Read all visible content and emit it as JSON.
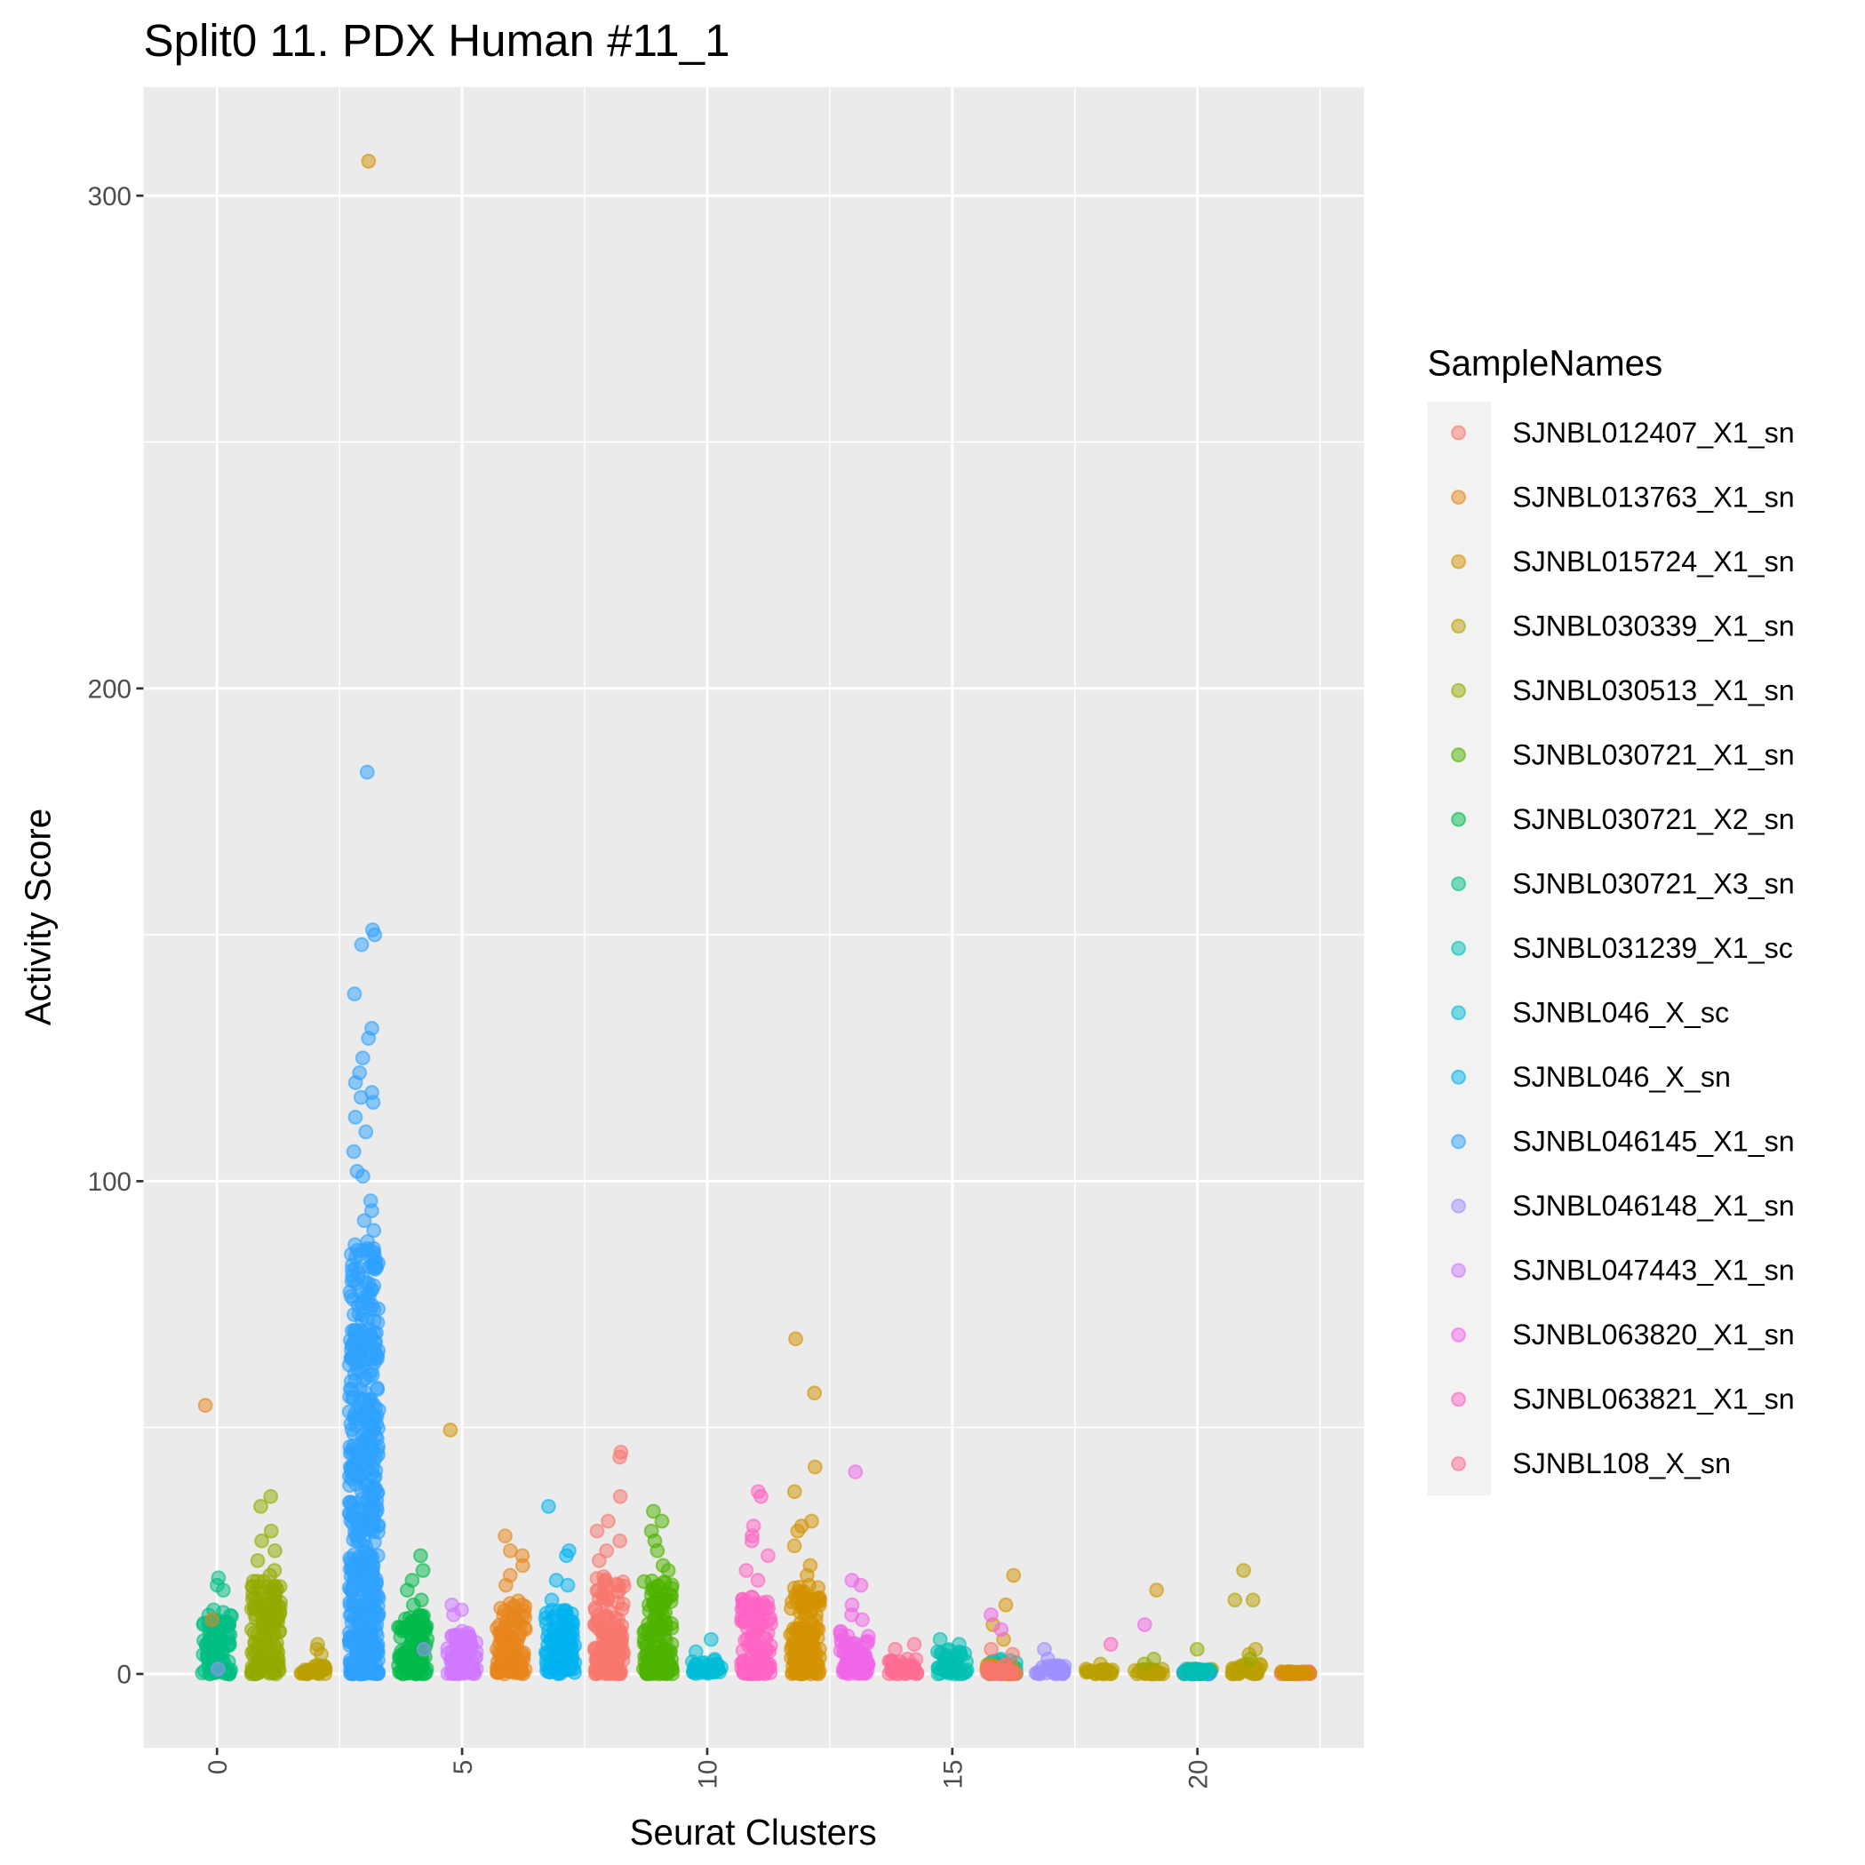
{
  "chart_data": {
    "type": "scatter",
    "subtype": "jittered strip plot",
    "title": "Split0 11. PDX Human #11_1",
    "xlabel": "Seurat Clusters",
    "ylabel": "Activity Score",
    "xlim": [
      -1.5,
      23.4
    ],
    "ylim": [
      -15,
      322
    ],
    "x_ticks": [
      0,
      5,
      10,
      15,
      20
    ],
    "y_ticks": [
      0,
      100,
      200,
      300
    ],
    "grid": true,
    "legend": {
      "title": "SampleNames",
      "position": "right",
      "entries": [
        {
          "name": "SJNBL012407_X1_sn",
          "color": "#F8766D"
        },
        {
          "name": "SJNBL013763_X1_sn",
          "color": "#E7861B"
        },
        {
          "name": "SJNBL015724_X1_sn",
          "color": "#D39200"
        },
        {
          "name": "SJNBL030339_X1_sn",
          "color": "#B9A000"
        },
        {
          "name": "SJNBL030513_X1_sn",
          "color": "#93AA00"
        },
        {
          "name": "SJNBL030721_X1_sn",
          "color": "#4DB300"
        },
        {
          "name": "SJNBL030721_X2_sn",
          "color": "#00BA4A"
        },
        {
          "name": "SJNBL030721_X3_sn",
          "color": "#00BE83"
        },
        {
          "name": "SJNBL031239_X1_sc",
          "color": "#00BFB2"
        },
        {
          "name": "SJNBL046_X_sc",
          "color": "#00BCD6"
        },
        {
          "name": "SJNBL046_X_sn",
          "color": "#00B3F0"
        },
        {
          "name": "SJNBL046145_X1_sn",
          "color": "#2EA2FF"
        },
        {
          "name": "SJNBL046148_X1_sn",
          "color": "#9E90FF"
        },
        {
          "name": "SJNBL047443_X1_sn",
          "color": "#D078FF"
        },
        {
          "name": "SJNBL063820_X1_sn",
          "color": "#F066E8"
        },
        {
          "name": "SJNBL063821_X1_sn",
          "color": "#FF63C3"
        },
        {
          "name": "SJNBL108_X_sn",
          "color": "#FF6C91"
        }
      ]
    },
    "clusters": [
      {
        "cluster": 0,
        "groups": [
          {
            "sample": "SJNBL030721_X3_sn",
            "range": [
              0,
              12
            ],
            "outliers": [
              19.5,
              18,
              17,
              13,
              12.5
            ]
          },
          {
            "sample": "SJNBL013763_X1_sn",
            "range": [
              0,
              0
            ],
            "outliers": [
              54.5,
              11
            ]
          },
          {
            "sample": "SJNBL046148_X1_sn",
            "range": [
              0,
              0
            ],
            "outliers": [
              1
            ]
          }
        ]
      },
      {
        "cluster": 1,
        "groups": [
          {
            "sample": "SJNBL030513_X1_sn",
            "range": [
              0,
              19
            ],
            "outliers": [
              36,
              34,
              29,
              27,
              25,
              23,
              21,
              20
            ]
          }
        ]
      },
      {
        "cluster": 2,
        "groups": [
          {
            "sample": "SJNBL030339_X1_sn",
            "range": [
              0,
              2
            ],
            "outliers": [
              6,
              5,
              4
            ]
          }
        ]
      },
      {
        "cluster": 3,
        "groups": [
          {
            "sample": "SJNBL046145_X1_sn",
            "range": [
              0,
              88
            ],
            "outliers": [
              183,
              151,
              150,
              148,
              138,
              131,
              129,
              125,
              122,
              120,
              118,
              117,
              116,
              113,
              110,
              106,
              102,
              101,
              96,
              94,
              92,
              90
            ]
          },
          {
            "sample": "SJNBL015724_X1_sn",
            "range": [
              0,
              0
            ],
            "outliers": [
              307
            ]
          }
        ]
      },
      {
        "cluster": 4,
        "groups": [
          {
            "sample": "SJNBL030721_X2_sn",
            "range": [
              0,
              12
            ],
            "outliers": [
              24,
              21,
              19,
              17,
              15,
              14
            ]
          },
          {
            "sample": "SJNBL046148_X1_sn",
            "range": [
              0,
              0
            ],
            "outliers": [
              5
            ]
          }
        ]
      },
      {
        "cluster": 5,
        "groups": [
          {
            "sample": "SJNBL047443_X1_sn",
            "range": [
              0,
              9
            ],
            "outliers": [
              14,
              13,
              12
            ]
          },
          {
            "sample": "SJNBL015724_X1_sn",
            "range": [
              0,
              0
            ],
            "outliers": [
              49.5
            ]
          }
        ]
      },
      {
        "cluster": 6,
        "groups": [
          {
            "sample": "SJNBL013763_X1_sn",
            "range": [
              0,
              15
            ],
            "outliers": [
              28,
              25,
              24,
              22,
              20,
              18
            ]
          }
        ]
      },
      {
        "cluster": 7,
        "groups": [
          {
            "sample": "SJNBL046_X_sn",
            "range": [
              0,
              13
            ],
            "outliers": [
              34,
              25,
              24,
              19,
              18,
              15
            ]
          }
        ]
      },
      {
        "cluster": 8,
        "groups": [
          {
            "sample": "SJNBL012407_X1_sn",
            "range": [
              0,
              20
            ],
            "outliers": [
              45,
              44,
              36,
              31,
              29,
              27,
              25,
              23
            ]
          }
        ]
      },
      {
        "cluster": 9,
        "groups": [
          {
            "sample": "SJNBL030721_X1_sn",
            "range": [
              0,
              19
            ],
            "outliers": [
              33,
              31,
              29,
              27,
              25,
              22,
              21
            ]
          }
        ]
      },
      {
        "cluster": 10,
        "groups": [
          {
            "sample": "SJNBL046_X_sc",
            "range": [
              0,
              3
            ],
            "outliers": [
              7,
              4.5
            ]
          }
        ]
      },
      {
        "cluster": 11,
        "groups": [
          {
            "sample": "SJNBL063821_X1_sn",
            "range": [
              0,
              16
            ],
            "outliers": [
              37,
              36,
              30,
              28,
              27,
              24,
              21,
              19
            ]
          }
        ]
      },
      {
        "cluster": 12,
        "groups": [
          {
            "sample": "SJNBL015724_X1_sn",
            "range": [
              0,
              18
            ],
            "outliers": [
              68,
              57,
              42,
              37,
              31,
              30,
              29,
              26,
              22,
              20
            ]
          }
        ]
      },
      {
        "cluster": 13,
        "groups": [
          {
            "sample": "SJNBL063820_X1_sn",
            "range": [
              0,
              9
            ],
            "outliers": [
              41,
              19,
              18,
              14,
              12,
              11
            ]
          }
        ]
      },
      {
        "cluster": 14,
        "groups": [
          {
            "sample": "SJNBL108_X_sn",
            "range": [
              0,
              3
            ],
            "outliers": [
              6,
              5
            ]
          }
        ]
      },
      {
        "cluster": 15,
        "groups": [
          {
            "sample": "SJNBL031239_X1_sc",
            "range": [
              0,
              5
            ],
            "outliers": [
              7,
              6
            ]
          }
        ]
      },
      {
        "cluster": 16,
        "groups": [
          {
            "sample": "SJNBL031239_X1_sc",
            "range": [
              0,
              3
            ],
            "outliers": []
          },
          {
            "sample": "SJNBL015724_X1_sn",
            "range": [
              0,
              2
            ],
            "outliers": [
              20,
              14,
              10,
              7
            ]
          },
          {
            "sample": "SJNBL063820_X1_sn",
            "range": [
              0,
              0
            ],
            "outliers": [
              12,
              9
            ]
          },
          {
            "sample": "SJNBL012407_X1_sn",
            "range": [
              0,
              2
            ],
            "outliers": [
              5,
              4
            ]
          }
        ]
      },
      {
        "cluster": 17,
        "groups": [
          {
            "sample": "SJNBL046148_X1_sn",
            "range": [
              0,
              2
            ],
            "outliers": [
              5,
              3
            ]
          }
        ]
      },
      {
        "cluster": 18,
        "groups": [
          {
            "sample": "SJNBL030339_X1_sn",
            "range": [
              0,
              1
            ],
            "outliers": [
              2
            ]
          },
          {
            "sample": "SJNBL063821_X1_sn",
            "range": [
              0,
              0
            ],
            "outliers": [
              6
            ]
          }
        ]
      },
      {
        "cluster": 19,
        "groups": [
          {
            "sample": "SJNBL030339_X1_sn",
            "range": [
              0,
              1
            ],
            "outliers": []
          },
          {
            "sample": "SJNBL015724_X1_sn",
            "range": [
              0,
              0
            ],
            "outliers": [
              17
            ]
          },
          {
            "sample": "SJNBL063820_X1_sn",
            "range": [
              0,
              0
            ],
            "outliers": [
              10
            ]
          },
          {
            "sample": "SJNBL030513_X1_sn",
            "range": [
              0,
              0
            ],
            "outliers": [
              3,
              2
            ]
          }
        ]
      },
      {
        "cluster": 20,
        "groups": [
          {
            "sample": "SJNBL030339_X1_sn",
            "range": [
              0,
              1
            ],
            "outliers": []
          },
          {
            "sample": "SJNBL030513_X1_sn",
            "range": [
              0,
              0
            ],
            "outliers": [
              5
            ]
          },
          {
            "sample": "SJNBL046145_X1_sn",
            "range": [
              0,
              1
            ],
            "outliers": []
          },
          {
            "sample": "SJNBL031239_X1_sc",
            "range": [
              0,
              1
            ],
            "outliers": []
          }
        ]
      },
      {
        "cluster": 21,
        "groups": [
          {
            "sample": "SJNBL030339_X1_sn",
            "range": [
              0,
              2
            ],
            "outliers": [
              21,
              15,
              15,
              5,
              4
            ]
          },
          {
            "sample": "SJNBL030513_X1_sn",
            "range": [
              0,
              0
            ],
            "outliers": [
              3
            ]
          }
        ]
      },
      {
        "cluster": 22,
        "groups": [
          {
            "sample": "SJNBL012407_X1_sn",
            "range": [
              0,
              0.5
            ],
            "outliers": []
          },
          {
            "sample": "SJNBL015724_X1_sn",
            "range": [
              0,
              0.5
            ],
            "outliers": []
          }
        ]
      }
    ]
  }
}
